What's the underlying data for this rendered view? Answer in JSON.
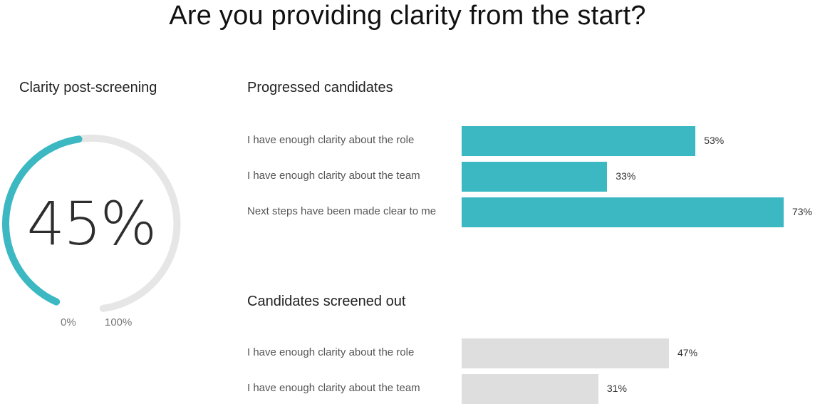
{
  "title": "Are you providing clarity from the start?",
  "colors": {
    "gauge_fill": "#3cb8c3",
    "gauge_track": "#e6e6e6",
    "progressed_bar": "#3cb8c3",
    "screened_bar": "#dedede"
  },
  "chart_data": [
    {
      "type": "gauge",
      "title": "Clarity post-screening",
      "value": 45,
      "value_label": "45%",
      "min_label": "0%",
      "max_label": "100%",
      "range": [
        0,
        100
      ]
    },
    {
      "type": "bar",
      "orientation": "horizontal",
      "title": "Progressed candidates",
      "categories": [
        "I have enough clarity about the role",
        "I have enough clarity about the team",
        "Next steps have been made clear to me"
      ],
      "values": [
        53,
        33,
        73
      ],
      "value_labels": [
        "53%",
        "33%",
        "73%"
      ],
      "xlim": [
        0,
        73
      ]
    },
    {
      "type": "bar",
      "orientation": "horizontal",
      "title": "Candidates screened out",
      "categories": [
        "I have enough clarity about the role",
        "I have enough clarity about the team"
      ],
      "values": [
        47,
        31
      ],
      "value_labels": [
        "47%",
        "31%"
      ],
      "xlim": [
        0,
        73
      ]
    }
  ]
}
